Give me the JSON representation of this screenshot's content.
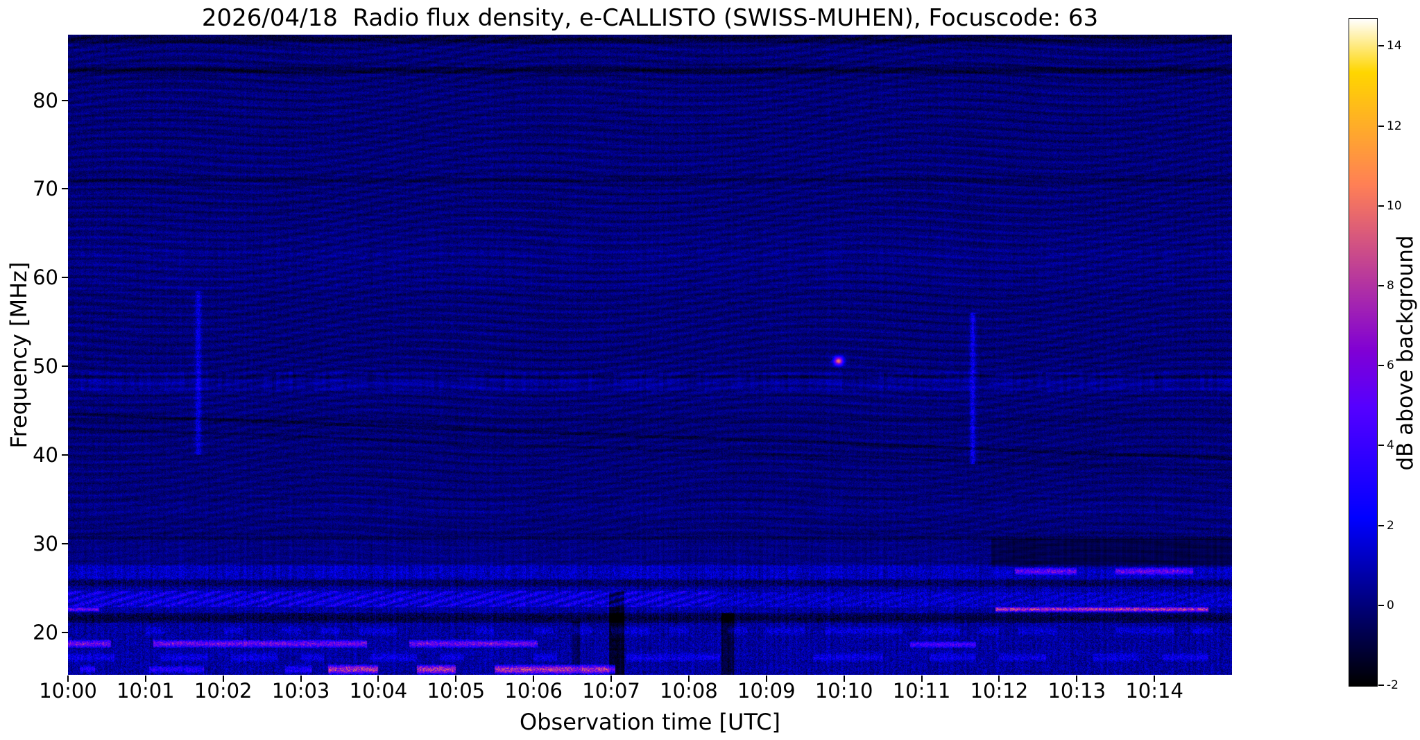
{
  "chart_data": {
    "type": "heatmap",
    "title": "2026/04/18  Radio flux density, e-CALLISTO (SWISS-MUHEN), Focuscode: 63",
    "xlabel": "Observation time [UTC]",
    "ylabel": "Frequency [MHz]",
    "x_ticks": [
      "10:00",
      "10:01",
      "10:02",
      "10:03",
      "10:04",
      "10:05",
      "10:06",
      "10:07",
      "10:08",
      "10:09",
      "10:10",
      "10:11",
      "10:12",
      "10:13",
      "10:14"
    ],
    "x_range_minutes": [
      0,
      15
    ],
    "start_time_utc": "10:00",
    "y_ticks": [
      20,
      30,
      40,
      50,
      60,
      70,
      80
    ],
    "y_range_mhz": [
      15.2,
      87.4
    ],
    "colormap": "gnuplot2",
    "background_color": "#ffffff",
    "text_color": "#000000",
    "colorbar": {
      "label": "dB above background",
      "ticks": [
        -2,
        0,
        2,
        4,
        6,
        8,
        10,
        12,
        14
      ],
      "range": [
        -2,
        14.7
      ]
    },
    "dark_lines": [
      [
        86.9,
        0.5,
        -1.0
      ],
      [
        83.4,
        0.35,
        -1.1
      ],
      [
        71.0,
        0.3,
        -0.7
      ],
      [
        48.85,
        0.25,
        -0.8
      ],
      [
        44.0,
        0.25,
        -0.4
      ],
      [
        35.0,
        0.25,
        -0.45
      ],
      [
        30.6,
        0.25,
        -0.45
      ],
      [
        25.55,
        0.4,
        -1.3
      ],
      [
        21.6,
        0.55,
        -1.7
      ]
    ],
    "bright_bands": [
      [
        48.3,
        1.1,
        0.75
      ],
      [
        60.8,
        2.2,
        0.22
      ],
      [
        64.0,
        1.8,
        0.18
      ],
      [
        34.3,
        1.2,
        0.3
      ],
      [
        29.2,
        1.2,
        0.3
      ],
      [
        26.8,
        0.7,
        0.8
      ],
      [
        23.7,
        0.9,
        0.35
      ]
    ],
    "features": [
      {
        "kind": "vstreak",
        "t": 1.68,
        "f0": 40,
        "f1": 58.5,
        "tw": 0.04,
        "amp": 2.6
      },
      {
        "kind": "vstreak",
        "t": 11.66,
        "f0": 39,
        "f1": 56,
        "tw": 0.035,
        "amp": 3.0
      },
      {
        "kind": "spot",
        "t": 9.93,
        "f": 50.6,
        "tw": 0.06,
        "fw": 0.45,
        "amp": 10.5
      },
      {
        "kind": "hband",
        "f0": 15.2,
        "f1": 16.4,
        "t0": 3.35,
        "t1": 7.05,
        "amp": 9.0,
        "dashP": 0.5,
        "dashD": 0.9,
        "var": 2.0
      },
      {
        "kind": "hband",
        "f0": 15.3,
        "f1": 16.3,
        "t0": 0.15,
        "t1": 3.35,
        "amp": 3.2,
        "dashP": 0.35,
        "dashD": 0.55,
        "var": 1.5
      },
      {
        "kind": "hband",
        "f0": 18.2,
        "f1": 19.2,
        "t0": 0.0,
        "t1": 6.3,
        "amp": 6.5,
        "dashP": 0.55,
        "dashD": 0.7,
        "var": 2.0
      },
      {
        "kind": "hband",
        "f0": 18.2,
        "f1": 19.0,
        "t0": 10.85,
        "t1": 12.15,
        "amp": 5.0,
        "dashP": 0.45,
        "dashD": 0.85,
        "var": 1.5
      },
      {
        "kind": "hband",
        "f0": 16.6,
        "f1": 17.7,
        "t0": 0,
        "t1": 15,
        "amp": 1.7,
        "dashP": 0.3,
        "dashD": 0.5,
        "var": 0.8
      },
      {
        "kind": "hband",
        "f0": 19.6,
        "f1": 20.7,
        "t0": 0,
        "t1": 15,
        "amp": 1.3,
        "dashP": 0.25,
        "dashD": 0.5,
        "var": 0.6
      },
      {
        "kind": "hband",
        "f0": 22.25,
        "f1": 22.9,
        "t0": 11.95,
        "t1": 15,
        "amp": 9.5,
        "dashP": 0.7,
        "dashD": 0.85,
        "var": 2.0
      },
      {
        "kind": "hband",
        "f0": 22.3,
        "f1": 22.85,
        "t0": 0.0,
        "t1": 0.4,
        "amp": 6.5,
        "dashP": 1.0,
        "dashD": 1.0,
        "var": 1.0
      },
      {
        "kind": "hband",
        "f0": 26.4,
        "f1": 27.35,
        "t0": 12.2,
        "t1": 15,
        "amp": 5.5,
        "dashP": 0.5,
        "dashD": 0.65,
        "var": 2.0
      },
      {
        "kind": "hatch",
        "f0": 22.9,
        "f1": 24.7,
        "t0": 0,
        "t1": 8.35,
        "amp": 2.8,
        "period": 0.3
      },
      {
        "kind": "hatch",
        "f0": 22.9,
        "f1": 24.5,
        "t0": 8.35,
        "t1": 15,
        "amp": 1.3,
        "period": 0.32
      },
      {
        "kind": "darkpatch",
        "f0": 27.3,
        "f1": 30.5,
        "t0": 11.9,
        "t1": 15,
        "amp": -1.3
      },
      {
        "kind": "darkcol",
        "t": 7.07,
        "tw": 0.1,
        "f0": 15.2,
        "f1": 24.6,
        "amp": -2.6
      },
      {
        "kind": "darkcol",
        "t": 8.5,
        "tw": 0.08,
        "f0": 15.2,
        "f1": 22.2,
        "amp": -2.0
      },
      {
        "kind": "darkcol",
        "t": 6.55,
        "tw": 0.05,
        "f0": 15.2,
        "f1": 21.2,
        "amp": -1.5
      },
      {
        "kind": "dline",
        "fA": 44.6,
        "fB": 39.6,
        "w": 0.18,
        "amp": -0.7
      },
      {
        "kind": "dline",
        "fA": 43.0,
        "fB": 38.2,
        "w": 0.15,
        "amp": -0.5
      }
    ]
  }
}
